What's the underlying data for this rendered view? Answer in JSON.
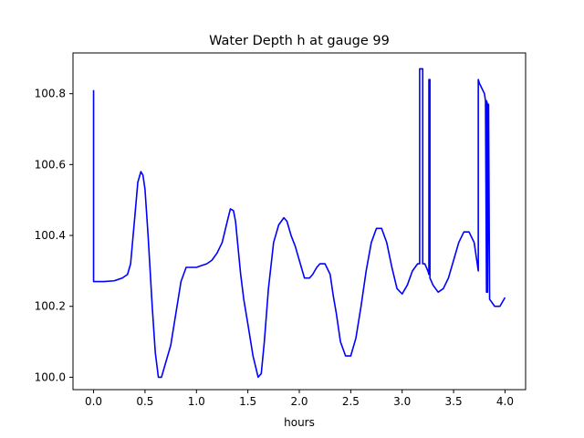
{
  "chart_data": {
    "type": "line",
    "title": "Water Depth h at gauge 99",
    "xlabel": "hours",
    "ylabel": "",
    "xlim": [
      -0.2,
      4.2
    ],
    "ylim": [
      99.965,
      100.915
    ],
    "xticks": [
      0.0,
      0.5,
      1.0,
      1.5,
      2.0,
      2.5,
      3.0,
      3.5,
      4.0
    ],
    "xtick_labels": [
      "0.0",
      "0.5",
      "1.0",
      "1.5",
      "2.0",
      "2.5",
      "3.0",
      "3.5",
      "4.0"
    ],
    "yticks": [
      100.0,
      100.2,
      100.4,
      100.6,
      100.8
    ],
    "ytick_labels": [
      "100.0",
      "100.2",
      "100.4",
      "100.6",
      "100.8"
    ],
    "grid": false,
    "color": "#0000ff",
    "series": [
      {
        "name": "",
        "x": [
          0.0,
          0.0,
          0.0,
          0.1,
          0.2,
          0.28,
          0.33,
          0.36,
          0.4,
          0.43,
          0.46,
          0.48,
          0.5,
          0.53,
          0.57,
          0.6,
          0.63,
          0.66,
          0.68,
          0.7,
          0.75,
          0.8,
          0.85,
          0.9,
          0.95,
          1.0,
          1.05,
          1.1,
          1.15,
          1.2,
          1.25,
          1.3,
          1.33,
          1.36,
          1.38,
          1.4,
          1.43,
          1.46,
          1.5,
          1.55,
          1.6,
          1.63,
          1.66,
          1.7,
          1.75,
          1.8,
          1.85,
          1.88,
          1.92,
          1.96,
          2.0,
          2.05,
          2.1,
          2.13,
          2.17,
          2.2,
          2.25,
          2.3,
          2.33,
          2.36,
          2.4,
          2.45,
          2.5,
          2.55,
          2.6,
          2.65,
          2.7,
          2.75,
          2.8,
          2.85,
          2.9,
          2.95,
          3.0,
          3.05,
          3.1,
          3.15,
          3.17,
          3.17,
          3.2,
          3.2,
          3.22,
          3.25,
          3.26,
          3.26,
          3.27,
          3.27,
          3.3,
          3.35,
          3.4,
          3.45,
          3.5,
          3.55,
          3.6,
          3.65,
          3.7,
          3.74,
          3.74,
          3.75,
          3.8,
          3.81,
          3.82,
          3.82,
          3.83,
          3.83,
          3.84,
          3.85,
          3.9,
          3.95,
          4.0
        ],
        "y": [
          100.81,
          100.27,
          100.27,
          100.27,
          100.272,
          100.28,
          100.29,
          100.32,
          100.45,
          100.55,
          100.58,
          100.57,
          100.53,
          100.4,
          100.2,
          100.07,
          100.0,
          100.0,
          100.02,
          100.04,
          100.09,
          100.18,
          100.27,
          100.31,
          100.31,
          100.31,
          100.315,
          100.32,
          100.33,
          100.35,
          100.38,
          100.44,
          100.475,
          100.47,
          100.44,
          100.38,
          100.29,
          100.22,
          100.15,
          100.06,
          100.0,
          100.01,
          100.1,
          100.25,
          100.38,
          100.43,
          100.45,
          100.44,
          100.4,
          100.37,
          100.33,
          100.28,
          100.28,
          100.29,
          100.31,
          100.32,
          100.32,
          100.29,
          100.23,
          100.18,
          100.1,
          100.06,
          100.06,
          100.11,
          100.2,
          100.3,
          100.38,
          100.42,
          100.42,
          100.38,
          100.31,
          100.25,
          100.235,
          100.26,
          100.3,
          100.32,
          100.32,
          100.87,
          100.87,
          100.32,
          100.32,
          100.3,
          100.29,
          100.84,
          100.84,
          100.28,
          100.26,
          100.24,
          100.25,
          100.28,
          100.33,
          100.38,
          100.41,
          100.41,
          100.38,
          100.3,
          100.84,
          100.83,
          100.8,
          100.78,
          100.24,
          100.78,
          100.77,
          100.24,
          100.77,
          100.22,
          100.2,
          100.2,
          100.225
        ]
      }
    ]
  }
}
